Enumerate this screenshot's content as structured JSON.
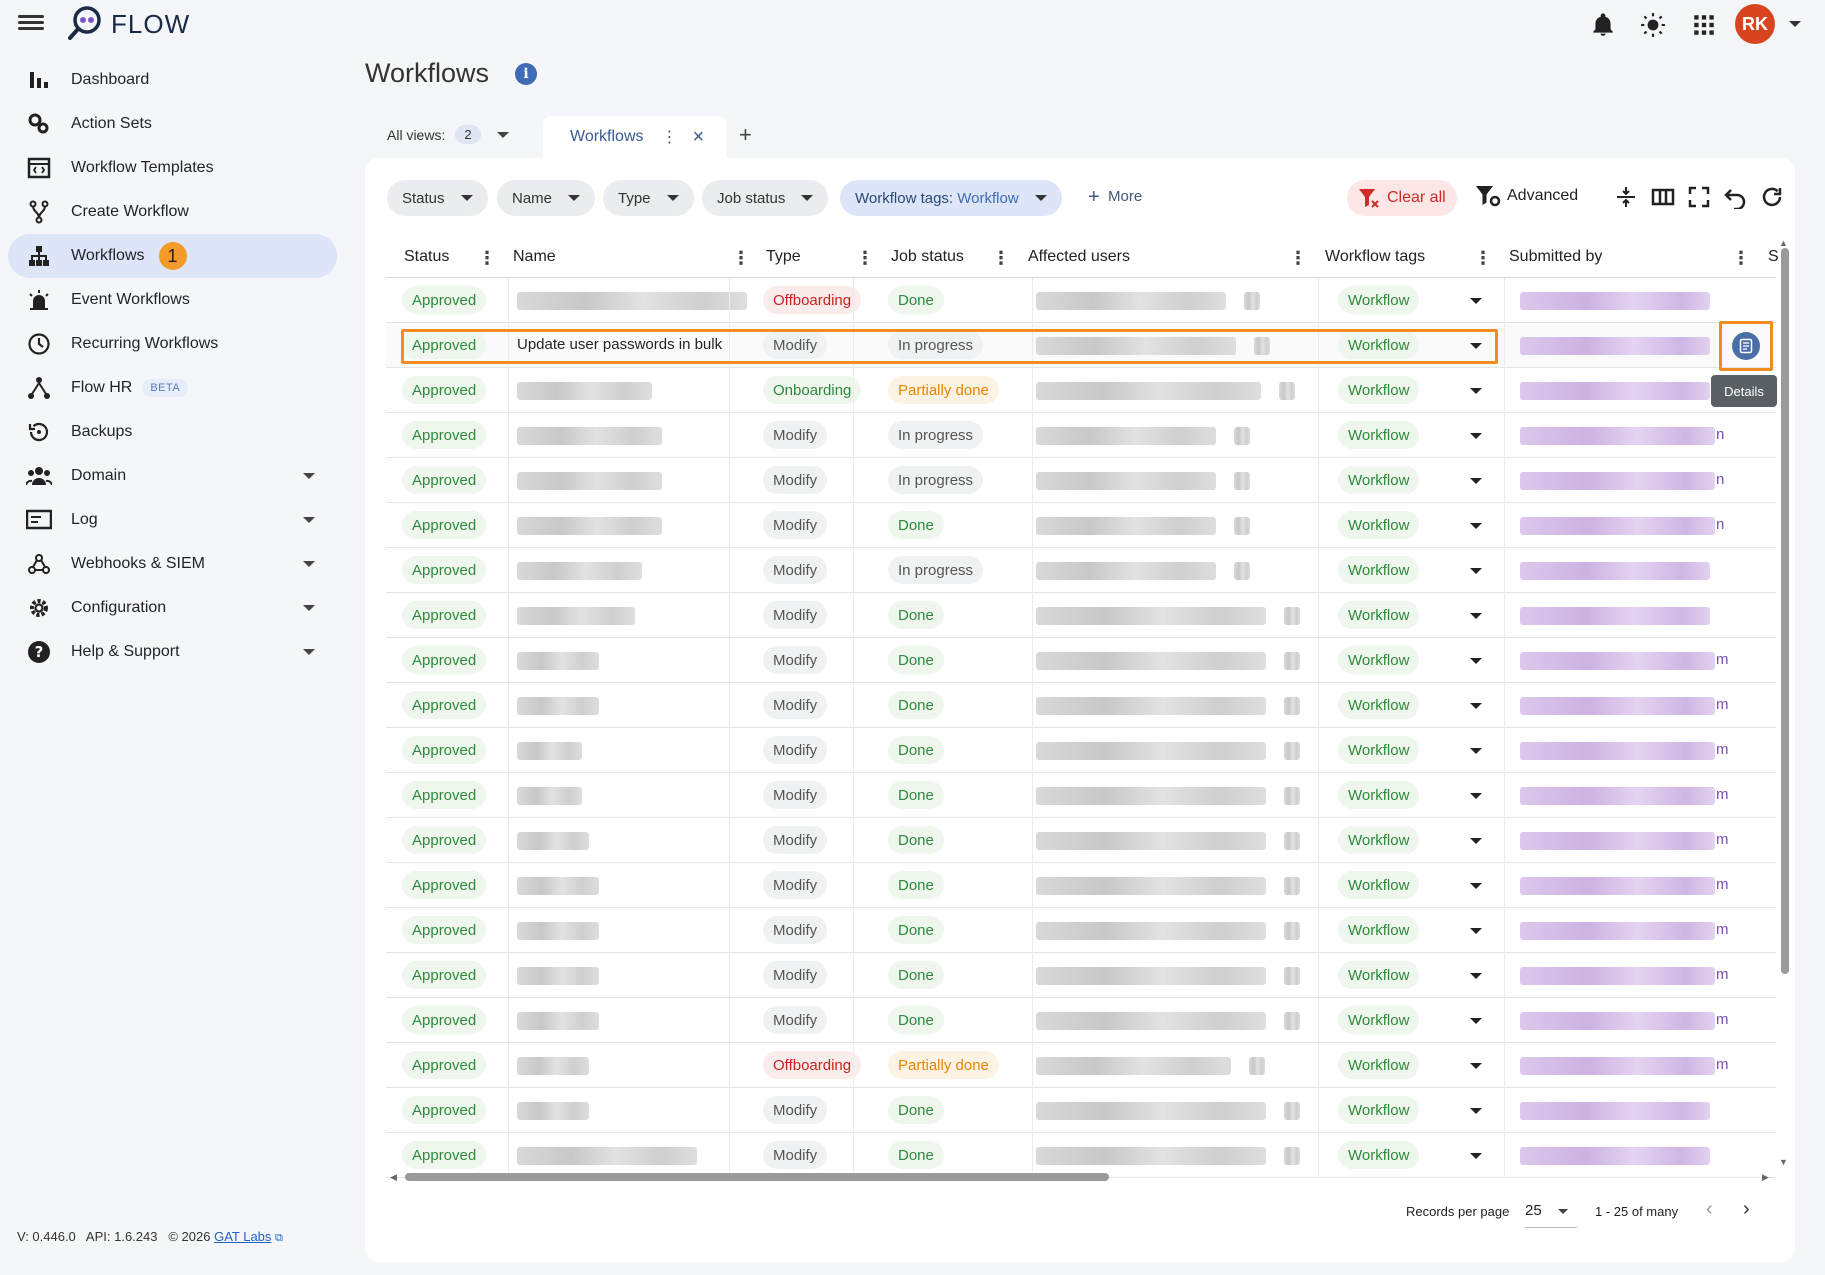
{
  "app": {
    "brand": "FLOW",
    "avatar_initials": "RK"
  },
  "sidebar": {
    "items": [
      {
        "label": "Dashboard",
        "icon": "bar-chart-icon"
      },
      {
        "label": "Action Sets",
        "icon": "gears-icon"
      },
      {
        "label": "Workflow Templates",
        "icon": "template-icon"
      },
      {
        "label": "Create Workflow",
        "icon": "fork-icon"
      },
      {
        "label": "Workflows",
        "icon": "hierarchy-icon",
        "badge": "1",
        "active": true
      },
      {
        "label": "Event Workflows",
        "icon": "alarm-icon"
      },
      {
        "label": "Recurring Workflows",
        "icon": "clock-icon"
      },
      {
        "label": "Flow HR",
        "icon": "people-tree-icon",
        "tag": "BETA"
      },
      {
        "label": "Backups",
        "icon": "history-icon"
      },
      {
        "label": "Domain",
        "icon": "group-icon",
        "expandable": true
      },
      {
        "label": "Log",
        "icon": "log-icon",
        "expandable": true
      },
      {
        "label": "Webhooks & SIEM",
        "icon": "webhook-icon",
        "expandable": true
      },
      {
        "label": "Configuration",
        "icon": "gear-icon",
        "expandable": true
      },
      {
        "label": "Help & Support",
        "icon": "help-icon",
        "expandable": true
      }
    ]
  },
  "footer": {
    "version": "V: 0.446.0",
    "api": "API: 1.6.243",
    "copyright": "© 2026",
    "link": "GAT Labs"
  },
  "page": {
    "title": "Workflows"
  },
  "views": {
    "label": "All views:",
    "count": "2",
    "tab": "Workflows"
  },
  "filters": {
    "chips": [
      "Status",
      "Name",
      "Type",
      "Job status"
    ],
    "tags_label": "Workflow tags:",
    "tags_value": "Workflow",
    "more": "More",
    "clear_all": "Clear all",
    "advanced": "Advanced"
  },
  "table": {
    "columns": [
      "Status",
      "Name",
      "Type",
      "Job status",
      "Affected users",
      "Workflow tags",
      "Submitted by",
      "S"
    ],
    "rows": [
      {
        "status": "Approved",
        "name": "",
        "type": "Offboarding",
        "job": "Done",
        "tag": "Workflow"
      },
      {
        "status": "Approved",
        "name": "Update user passwords in bulk",
        "type": "Modify",
        "job": "In progress",
        "tag": "Workflow"
      },
      {
        "status": "Approved",
        "name": "",
        "type": "Onboarding",
        "job": "Partially done",
        "tag": "Workflow"
      },
      {
        "status": "Approved",
        "name": "",
        "type": "Modify",
        "job": "In progress",
        "tag": "Workflow",
        "trail": "n"
      },
      {
        "status": "Approved",
        "name": "",
        "type": "Modify",
        "job": "In progress",
        "tag": "Workflow",
        "trail": "n"
      },
      {
        "status": "Approved",
        "name": "",
        "type": "Modify",
        "job": "Done",
        "tag": "Workflow",
        "trail": "n"
      },
      {
        "status": "Approved",
        "name": "",
        "type": "Modify",
        "job": "In progress",
        "tag": "Workflow"
      },
      {
        "status": "Approved",
        "name": "",
        "type": "Modify",
        "job": "Done",
        "tag": "Workflow"
      },
      {
        "status": "Approved",
        "name": "",
        "type": "Modify",
        "job": "Done",
        "tag": "Workflow",
        "trail": "m"
      },
      {
        "status": "Approved",
        "name": "",
        "type": "Modify",
        "job": "Done",
        "tag": "Workflow",
        "trail": "m"
      },
      {
        "status": "Approved",
        "name": "",
        "type": "Modify",
        "job": "Done",
        "tag": "Workflow",
        "trail": "m"
      },
      {
        "status": "Approved",
        "name": "",
        "type": "Modify",
        "job": "Done",
        "tag": "Workflow",
        "trail": "m"
      },
      {
        "status": "Approved",
        "name": "",
        "type": "Modify",
        "job": "Done",
        "tag": "Workflow",
        "trail": "m"
      },
      {
        "status": "Approved",
        "name": "",
        "type": "Modify",
        "job": "Done",
        "tag": "Workflow",
        "trail": "m"
      },
      {
        "status": "Approved",
        "name": "",
        "type": "Modify",
        "job": "Done",
        "tag": "Workflow",
        "trail": "m"
      },
      {
        "status": "Approved",
        "name": "",
        "type": "Modify",
        "job": "Done",
        "tag": "Workflow",
        "trail": "m"
      },
      {
        "status": "Approved",
        "name": "",
        "type": "Modify",
        "job": "Done",
        "tag": "Workflow",
        "trail": "m"
      },
      {
        "status": "Approved",
        "name": "",
        "type": "Offboarding",
        "job": "Partially done",
        "tag": "Workflow",
        "trail": "m"
      },
      {
        "status": "Approved",
        "name": "",
        "type": "Modify",
        "job": "Done",
        "tag": "Workflow"
      },
      {
        "status": "Approved",
        "name": "",
        "type": "Modify",
        "job": "Done",
        "tag": "Workflow"
      }
    ],
    "details_tooltip": "Details"
  },
  "pagination": {
    "label": "Records per page",
    "per_page": "25",
    "range": "1 - 25 of many"
  },
  "colors": {
    "accent": "#f08d22",
    "active_bg": "#dde6f8",
    "approved": "#2e8a3a",
    "offboarding": "#cc2020",
    "partial": "#e68500"
  }
}
